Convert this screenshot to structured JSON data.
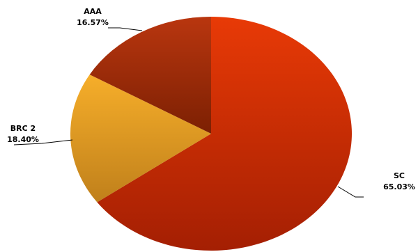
{
  "chart_data": {
    "type": "pie",
    "title": "",
    "slices": [
      {
        "label": "SC",
        "value": 65.03,
        "percent_label": "65.03%",
        "color_top": "#e83a06",
        "color_bottom": "#a41f03"
      },
      {
        "label": "BRC 2",
        "value": 18.4,
        "percent_label": "18.40%",
        "color_top": "#f6ae2a",
        "color_bottom": "#c0801b"
      },
      {
        "label": "AAA",
        "value": 16.57,
        "percent_label": "16.57%",
        "color_top": "#b9360f",
        "color_bottom": "#7c2003"
      }
    ],
    "legend": "none",
    "data_labels": "outside-with-leader-lines"
  }
}
